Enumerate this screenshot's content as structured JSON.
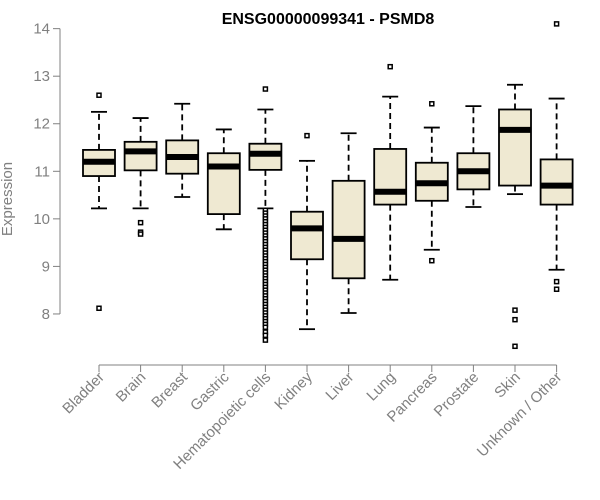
{
  "chart_data": {
    "type": "boxplot",
    "title": "ENSG00000099341 - PSMD8",
    "xlabel": "",
    "ylabel": "Expression",
    "ylim": [
      7.2,
      14.35
    ],
    "yticks": [
      8,
      9,
      10,
      11,
      12,
      13,
      14
    ],
    "box_fill": "#efe9d2",
    "box_stroke": "#000000",
    "axis_color": "#808080",
    "categories": [
      "Bladder",
      "Brain",
      "Breast",
      "Gastric",
      "Hematopoietic cells",
      "Kidney",
      "Liver",
      "Lung",
      "Pancreas",
      "Prostate",
      "Skin",
      "Unknown / Other"
    ],
    "boxes": [
      {
        "name": "Bladder",
        "whisker_low": 10.22,
        "q1": 10.9,
        "median": 11.2,
        "q3": 11.45,
        "whisker_high": 12.25,
        "outliers": [
          12.6,
          8.12
        ]
      },
      {
        "name": "Brain",
        "whisker_low": 10.22,
        "q1": 11.02,
        "median": 11.42,
        "q3": 11.62,
        "whisker_high": 12.12,
        "outliers": [
          9.92,
          9.72,
          9.68
        ]
      },
      {
        "name": "Breast",
        "whisker_low": 10.46,
        "q1": 10.95,
        "median": 11.3,
        "q3": 11.65,
        "whisker_high": 12.42,
        "outliers": []
      },
      {
        "name": "Gastric",
        "whisker_low": 9.78,
        "q1": 10.1,
        "median": 11.1,
        "q3": 11.38,
        "whisker_high": 11.88,
        "outliers": []
      },
      {
        "name": "Hematopoietic cells",
        "whisker_low": 10.22,
        "q1": 11.03,
        "median": 11.37,
        "q3": 11.58,
        "whisker_high": 12.3,
        "outliers": [
          12.73,
          10.18,
          10.12,
          10.06,
          10.0,
          9.94,
          9.88,
          9.82,
          9.76,
          9.7,
          9.64,
          9.58,
          9.52,
          9.46,
          9.4,
          9.34,
          9.28,
          9.22,
          9.16,
          9.1,
          9.04,
          8.98,
          8.92,
          8.86,
          8.8,
          8.74,
          8.68,
          8.62,
          8.56,
          8.5,
          8.44,
          8.38,
          8.32,
          8.26,
          8.2,
          8.14,
          8.08,
          8.02,
          7.96,
          7.9,
          7.84,
          7.78,
          7.72,
          7.62,
          7.55,
          7.45
        ]
      },
      {
        "name": "Kidney",
        "whisker_low": 7.68,
        "q1": 9.15,
        "median": 9.8,
        "q3": 10.15,
        "whisker_high": 11.22,
        "outliers": [
          11.75
        ]
      },
      {
        "name": "Liver",
        "whisker_low": 8.02,
        "q1": 8.75,
        "median": 9.58,
        "q3": 10.8,
        "whisker_high": 11.8,
        "outliers": []
      },
      {
        "name": "Lung",
        "whisker_low": 8.72,
        "q1": 10.3,
        "median": 10.57,
        "q3": 11.47,
        "whisker_high": 12.57,
        "outliers": [
          13.2
        ]
      },
      {
        "name": "Pancreas",
        "whisker_low": 9.35,
        "q1": 10.38,
        "median": 10.75,
        "q3": 11.18,
        "whisker_high": 11.92,
        "outliers": [
          12.42,
          9.12
        ]
      },
      {
        "name": "Prostate",
        "whisker_low": 10.25,
        "q1": 10.62,
        "median": 11.0,
        "q3": 11.38,
        "whisker_high": 12.37,
        "outliers": []
      },
      {
        "name": "Skin",
        "whisker_low": 10.52,
        "q1": 10.7,
        "median": 11.87,
        "q3": 12.3,
        "whisker_high": 12.82,
        "outliers": [
          8.08,
          7.88,
          7.32
        ]
      },
      {
        "name": "Unknown / Other",
        "whisker_low": 8.93,
        "q1": 10.3,
        "median": 10.7,
        "q3": 11.25,
        "whisker_high": 12.53,
        "outliers": [
          14.1,
          8.68,
          8.52
        ]
      }
    ]
  }
}
